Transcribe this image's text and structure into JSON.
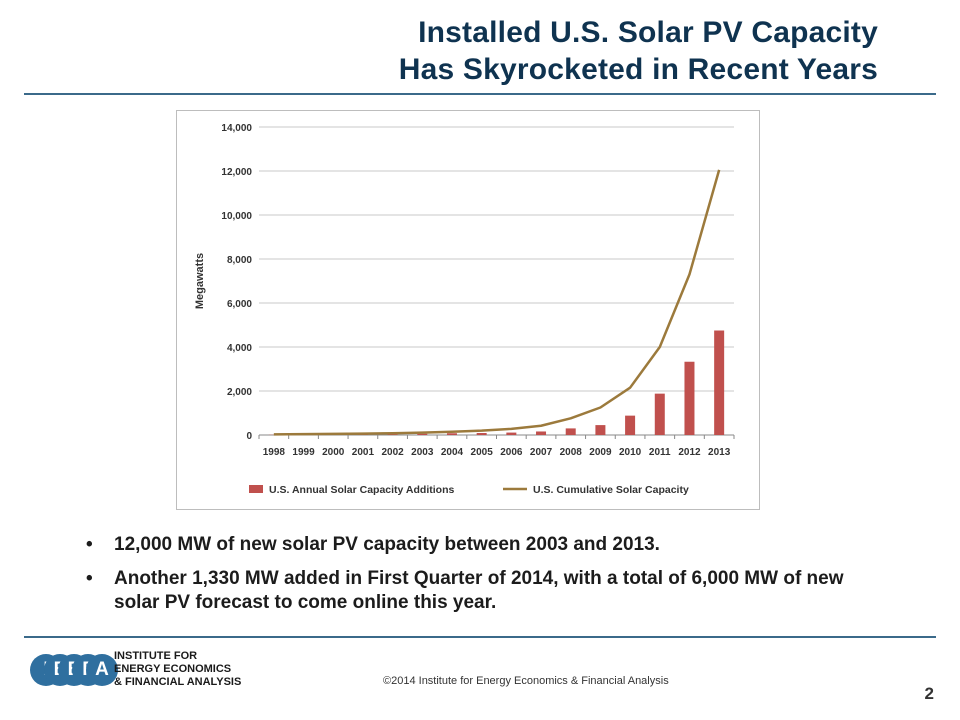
{
  "slide": {
    "title_line1": "Installed U.S. Solar PV Capacity",
    "title_line2": "Has Skyrocketed in Recent Years",
    "accent_color": "#3b6a8a",
    "title_color": "#0f3350"
  },
  "bullets": [
    "12,000 MW of new solar PV capacity between 2003 and 2013.",
    "Another 1,330 MW added in First Quarter of 2014, with a total of 6,000 MW of new solar PV forecast to come online this year."
  ],
  "bullet_glyph": "•",
  "logo": {
    "letters": [
      "I",
      "E",
      "E",
      "F",
      "A"
    ],
    "lines": [
      "INSTITUTE FOR",
      "ENERGY ECONOMICS",
      "& FINANCIAL ANALYSIS"
    ],
    "color": "#2f6f9f"
  },
  "footer": {
    "copyright": "©2014 Institute for Energy Economics & Financial Analysis",
    "page_number": "2"
  },
  "chart_data": {
    "type": "bar",
    "categories": [
      "1998",
      "1999",
      "2000",
      "2001",
      "2002",
      "2003",
      "2004",
      "2005",
      "2006",
      "2007",
      "2008",
      "2009",
      "2010",
      "2011",
      "2012",
      "2013"
    ],
    "series": [
      {
        "name": "U.S. Annual Solar Capacity Additions",
        "type": "bar",
        "color": "#c0504d",
        "values": [
          10,
          15,
          20,
          25,
          35,
          60,
          80,
          90,
          110,
          160,
          300,
          450,
          880,
          1880,
          3330,
          4750
        ]
      },
      {
        "name": "U.S. Cumulative Solar Capacity",
        "type": "line",
        "color": "#9c7a3c",
        "values": [
          30,
          40,
          50,
          60,
          80,
          110,
          150,
          200,
          280,
          420,
          760,
          1250,
          2150,
          4000,
          7300,
          12050
        ]
      }
    ],
    "ylabel": "Megawatts",
    "xlabel": "",
    "ylim": [
      0,
      14000
    ],
    "yticks": [
      0,
      2000,
      4000,
      6000,
      8000,
      10000,
      12000,
      14000
    ],
    "ytick_labels": [
      "0",
      "2,000",
      "4,000",
      "6,000",
      "8,000",
      "10,000",
      "12,000",
      "14,000"
    ],
    "grid": true,
    "legend_position": "bottom"
  }
}
